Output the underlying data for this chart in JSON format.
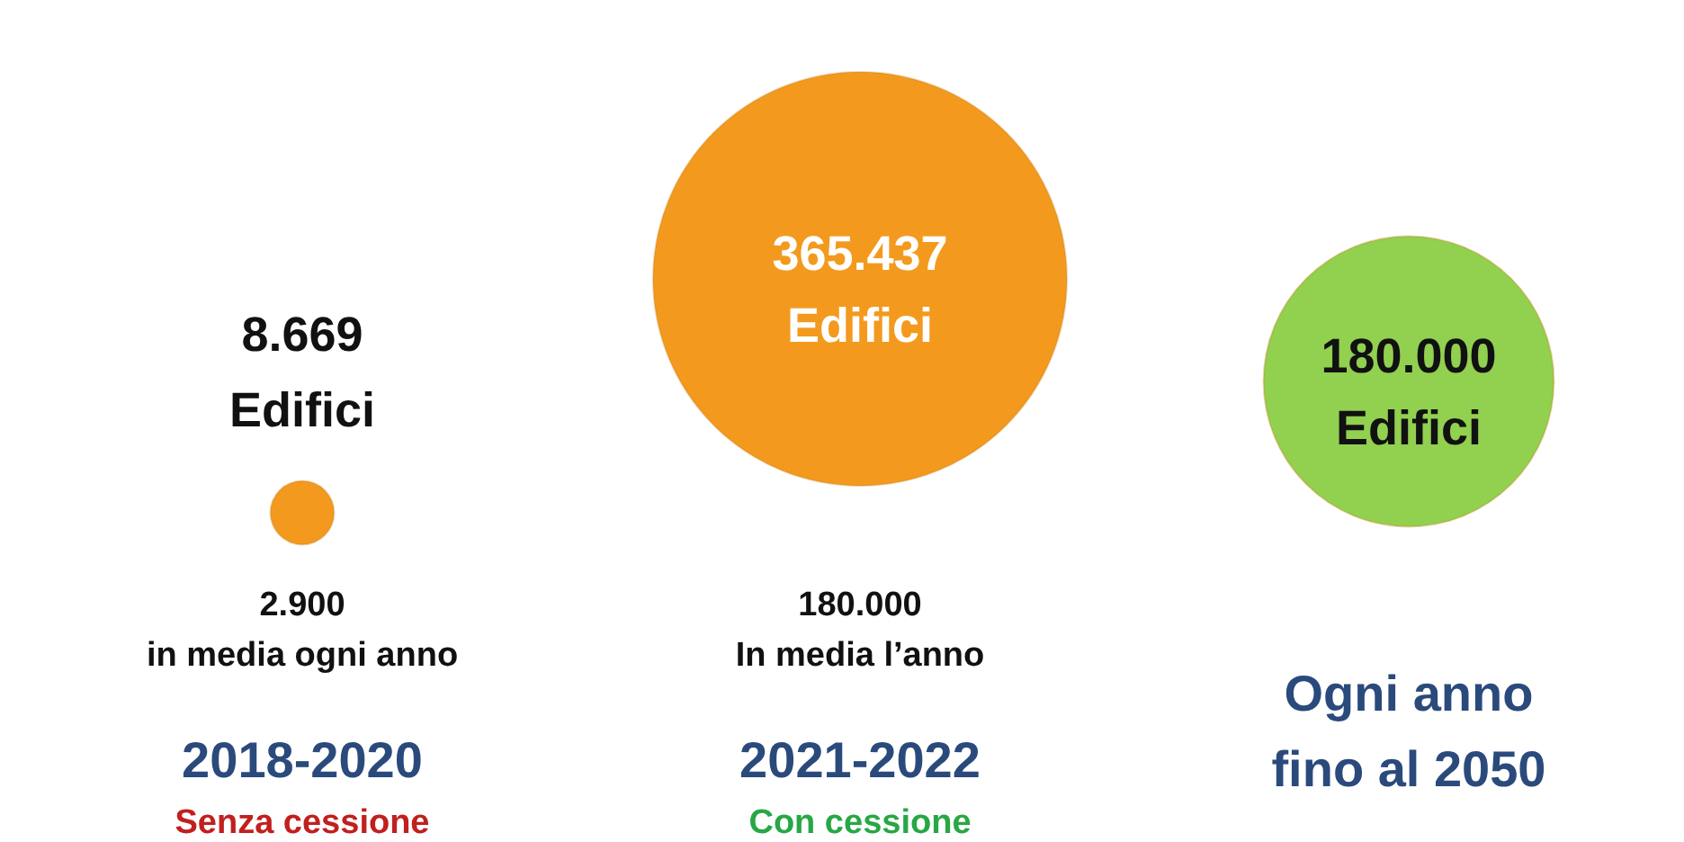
{
  "chart_data": {
    "type": "other",
    "categories": [
      "2018-2020",
      "2021-2022",
      "Ogni anno\nfino al 2050"
    ],
    "values": [
      8669,
      365437,
      180000
    ],
    "value_labels": [
      "8.669\nEdifici",
      "365.437\nEdifici",
      "180.000\nEdifici"
    ],
    "colors": [
      "#f39a1e",
      "#f39a1e",
      "#92d050"
    ],
    "annotations": [
      "2.900\nin media ogni anno",
      "180.000\nIn media l’anno",
      "Senza cessione",
      "Con cessione"
    ]
  }
}
